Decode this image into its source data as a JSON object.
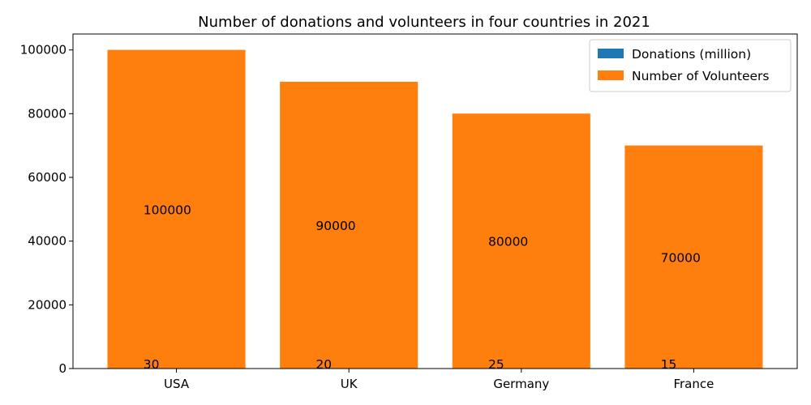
{
  "chart_data": {
    "type": "bar",
    "title": "Number of donations and volunteers in four countries in 2021",
    "categories": [
      "USA",
      "UK",
      "Germany",
      "France"
    ],
    "series": [
      {
        "name": "Donations (million)",
        "values": [
          30,
          20,
          25,
          15
        ],
        "color": "#1f77b4"
      },
      {
        "name": "Number of Volunteers",
        "values": [
          100000,
          90000,
          80000,
          70000
        ],
        "color": "#ff7f0e"
      }
    ],
    "stacked": true,
    "xlabel": "",
    "ylabel": "",
    "ylim": [
      0,
      105000
    ],
    "yticks": [
      0,
      20000,
      40000,
      60000,
      80000,
      100000
    ],
    "grid": false,
    "legend_position": "top-right"
  }
}
